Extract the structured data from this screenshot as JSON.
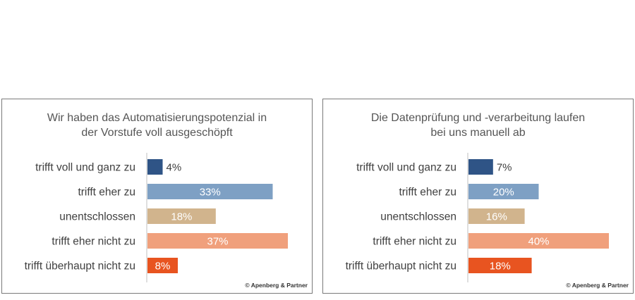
{
  "credit": "© Apenberg & Partner",
  "chart_data": [
    {
      "type": "bar",
      "orientation": "horizontal",
      "title_lines": [
        "Wir haben das Automatisierungspotenzial in",
        "der Vorstufe voll ausgeschöpft"
      ],
      "categories": [
        "trifft voll und ganz zu",
        "trifft eher zu",
        "unentschlossen",
        "trifft eher nicht zu",
        "trifft überhaupt nicht zu"
      ],
      "values": [
        4,
        33,
        18,
        37,
        8
      ],
      "value_labels": [
        "4%",
        "33%",
        "18%",
        "37%",
        "8%"
      ],
      "xlim": [
        0,
        37
      ],
      "colors": [
        "#2f5486",
        "#7ea0c4",
        "#d1b48d",
        "#f0a07c",
        "#e85420"
      ],
      "grid": false,
      "legend": "none"
    },
    {
      "type": "bar",
      "orientation": "horizontal",
      "title_lines": [
        "Die Datenprüfung und -verarbeitung laufen",
        "bei uns manuell ab"
      ],
      "categories": [
        "trifft voll und ganz zu",
        "trifft eher zu",
        "unentschlossen",
        "trifft eher nicht zu",
        "trifft überhaupt nicht zu"
      ],
      "values": [
        7,
        20,
        16,
        40,
        18
      ],
      "value_labels": [
        "7%",
        "20%",
        "16%",
        "40%",
        "18%"
      ],
      "xlim": [
        0,
        40
      ],
      "colors": [
        "#2f5486",
        "#7ea0c4",
        "#d1b48d",
        "#f0a07c",
        "#e85420"
      ],
      "grid": false,
      "legend": "none"
    }
  ]
}
